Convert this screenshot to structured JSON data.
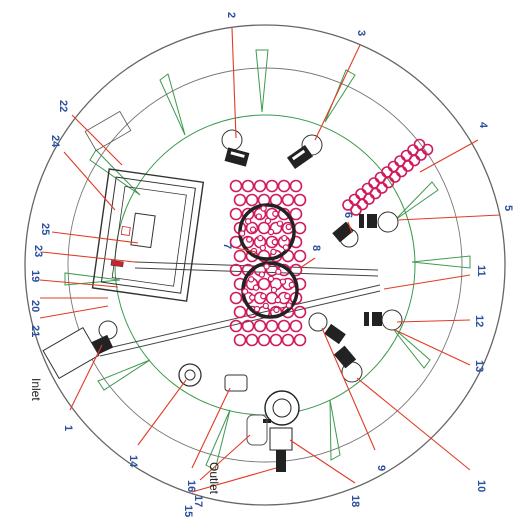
{
  "callouts": [
    {
      "id": "1",
      "text": "1"
    },
    {
      "id": "2",
      "text": "2"
    },
    {
      "id": "3",
      "text": "3"
    },
    {
      "id": "4",
      "text": "4"
    },
    {
      "id": "5",
      "text": "5"
    },
    {
      "id": "6",
      "text": "6"
    },
    {
      "id": "7",
      "text": "7"
    },
    {
      "id": "8",
      "text": "8"
    },
    {
      "id": "9",
      "text": "9"
    },
    {
      "id": "10",
      "text": "10"
    },
    {
      "id": "11",
      "text": "11"
    },
    {
      "id": "12",
      "text": "12"
    },
    {
      "id": "13",
      "text": "13"
    },
    {
      "id": "14",
      "text": "14"
    },
    {
      "id": "15",
      "text": "15"
    },
    {
      "id": "16",
      "text": "16"
    },
    {
      "id": "17",
      "text": "17"
    },
    {
      "id": "18",
      "text": "18"
    },
    {
      "id": "19",
      "text": "19"
    },
    {
      "id": "20",
      "text": "20"
    },
    {
      "id": "21",
      "text": "21"
    },
    {
      "id": "22",
      "text": "22"
    },
    {
      "id": "23",
      "text": "23"
    },
    {
      "id": "24",
      "text": "24"
    },
    {
      "id": "25",
      "text": "25"
    }
  ],
  "labels": {
    "inlet": "Inlet",
    "outlet": "Outlet"
  },
  "colors": {
    "outline": "#555555",
    "structure": "#3d9a4f",
    "media": "#d01a5c",
    "leader": "#e23b24",
    "callout": "#2c4f9e",
    "diffuser": "#222222"
  }
}
